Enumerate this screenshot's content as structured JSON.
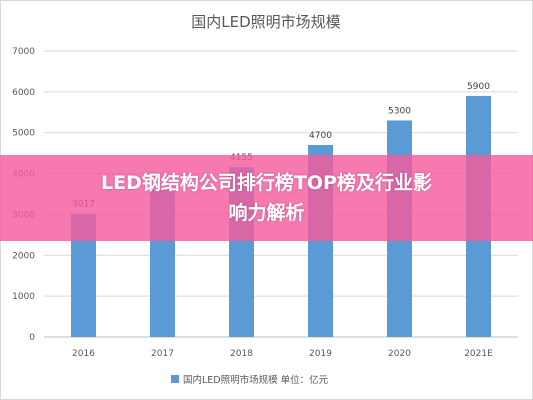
{
  "chart_data": {
    "type": "bar",
    "title": "国内LED照明市场规模",
    "categories": [
      "2016",
      "2017",
      "2018",
      "2019",
      "2020",
      "2021E"
    ],
    "series": [
      {
        "name": "国内LED照明市场规模 单位：亿元",
        "values": [
          3017,
          3600,
          4155,
          4700,
          5300,
          5900
        ]
      }
    ],
    "data_labels": [
      "3017",
      "",
      "4155",
      "4700",
      "5300",
      "5900"
    ],
    "y_ticks": [
      "0",
      "1000",
      "2000",
      "3000",
      "4000",
      "5000",
      "6000",
      "7000"
    ],
    "ylim": [
      0,
      7000
    ],
    "grid": true,
    "legend_position": "bottom",
    "colors": {
      "bar": "#5b9bd5",
      "grid": "#d9d9d9",
      "text": "#595959"
    }
  },
  "overlay": {
    "headline": "LED钢结构公司排行榜TOP榜及行业影响力解析",
    "color": "#f45c9e"
  }
}
